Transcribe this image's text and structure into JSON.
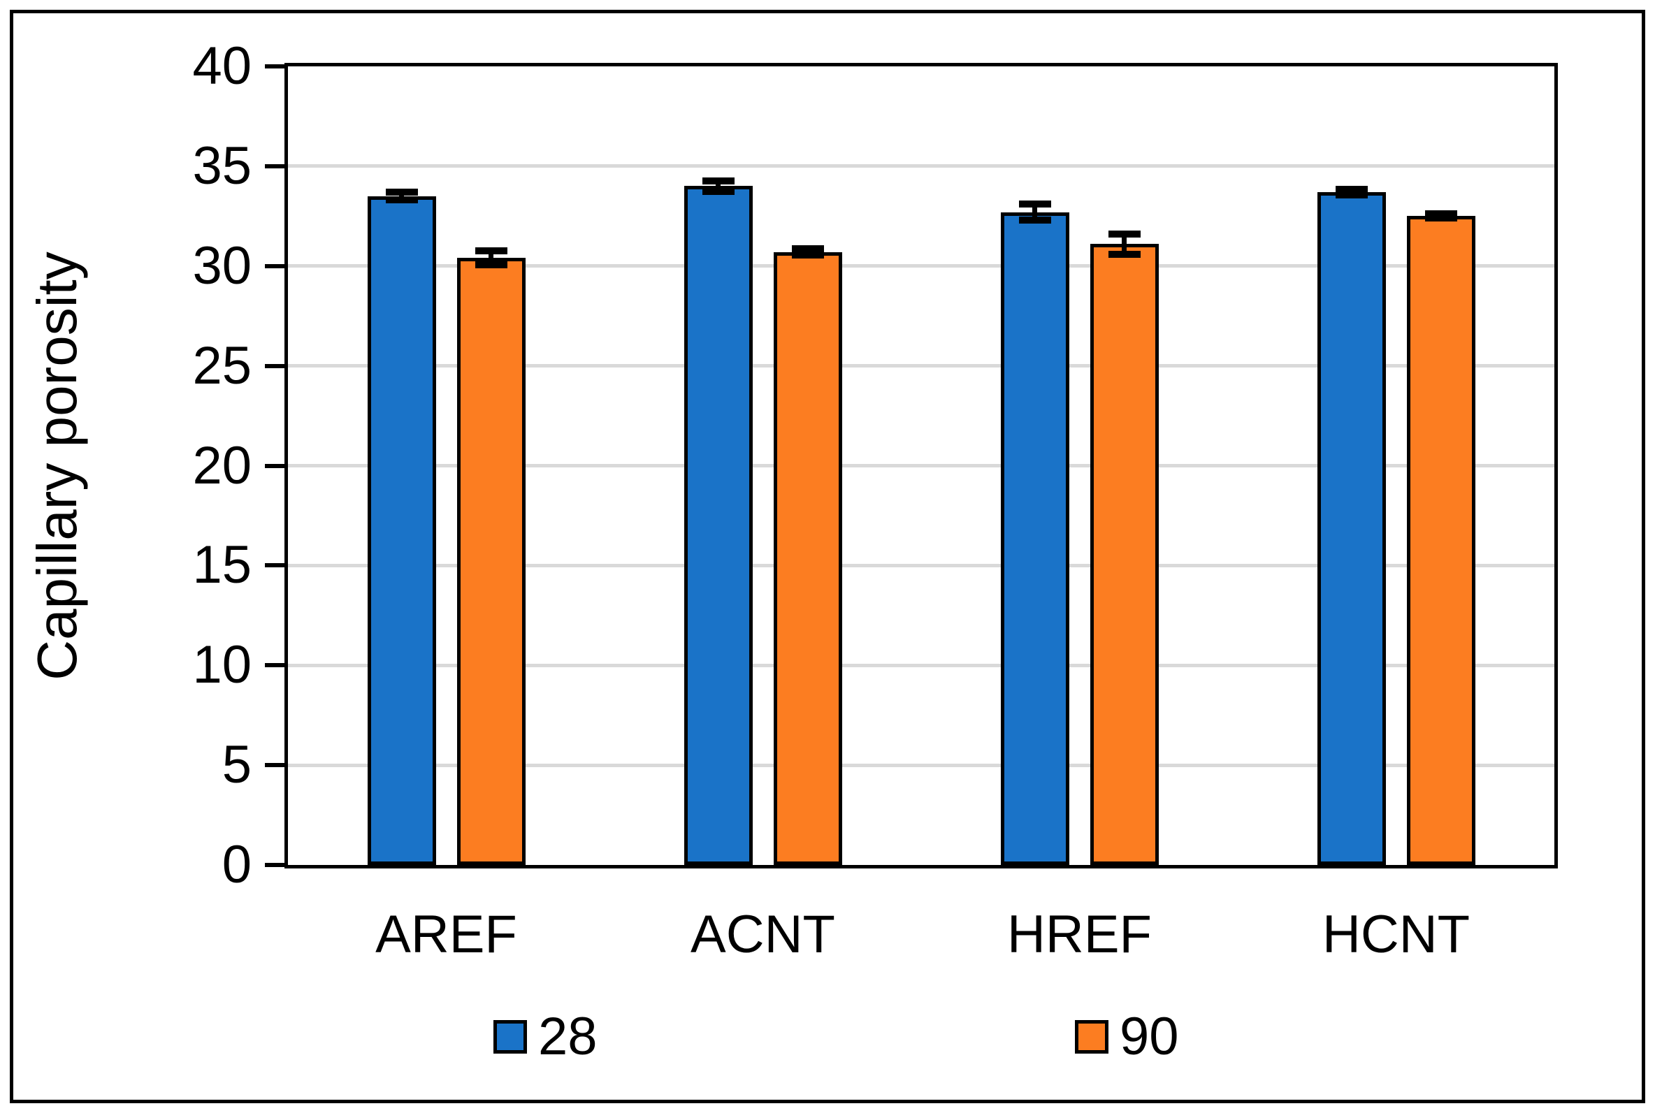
{
  "figure": {
    "background": "#ffffff",
    "frame_color": "#000000"
  },
  "chart_data": {
    "type": "bar",
    "title": "",
    "xlabel": "",
    "ylabel": "Capillary porosity",
    "categories": [
      "AREF",
      "ACNT",
      "HREF",
      "HCNT"
    ],
    "series": [
      {
        "name": "28",
        "color": "#1A73C8",
        "values": [
          33.5,
          34.0,
          32.7,
          33.7
        ],
        "errors": [
          0.2,
          0.25,
          0.4,
          0.15
        ]
      },
      {
        "name": "90",
        "color": "#FC7D21",
        "values": [
          30.4,
          30.7,
          31.1,
          32.5
        ],
        "errors": [
          0.35,
          0.15,
          0.5,
          0.1
        ]
      }
    ],
    "ylim": [
      0,
      40
    ],
    "yticks": [
      0,
      5,
      10,
      15,
      20,
      25,
      30,
      35,
      40
    ],
    "grid": true,
    "gridline_color": "#D9D9D9",
    "bar_border_color": "#000000",
    "error_bar_color": "#000000",
    "legend_position": "bottom",
    "legend_entries": [
      "28",
      "90"
    ]
  }
}
